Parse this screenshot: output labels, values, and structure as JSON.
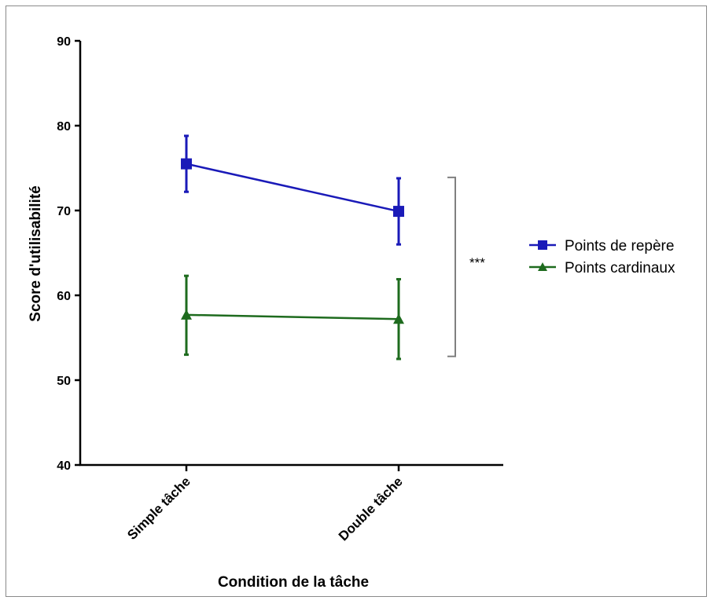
{
  "chart_data": {
    "type": "line",
    "xlabel": "Condition de la tâche",
    "ylabel": "Score d'utilisabilité",
    "categories": [
      "Simple tâche",
      "Double tâche"
    ],
    "ylim": [
      40,
      90
    ],
    "yticks": [
      40,
      50,
      60,
      70,
      80,
      90
    ],
    "legend_position": "right",
    "series": [
      {
        "name": "Points de repère",
        "marker": "square",
        "color": "#1a1ab8",
        "values": [
          75.5,
          69.9
        ],
        "error_low": [
          72.2,
          66.0
        ],
        "error_high": [
          78.8,
          73.8
        ]
      },
      {
        "name": "Points cardinaux",
        "marker": "triangle",
        "color": "#1e6b1e",
        "values": [
          57.7,
          57.2
        ],
        "error_low": [
          53.0,
          52.5
        ],
        "error_high": [
          62.3,
          61.9
        ]
      }
    ],
    "annotation": {
      "text": "***",
      "bracket_range": [
        52.8,
        73.9
      ],
      "color": "#808080"
    }
  }
}
